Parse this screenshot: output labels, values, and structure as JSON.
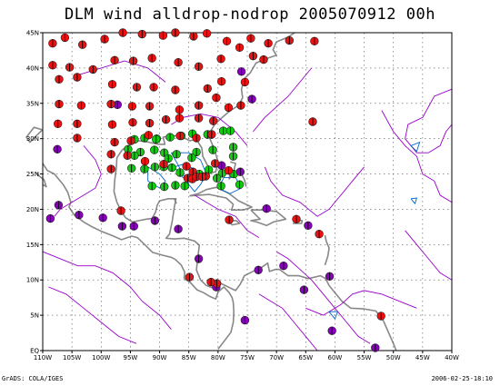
{
  "title": "DLM wind alldrop-nodrop 2005070912 00h",
  "footer_left": "GrADS: COLA/IGES",
  "footer_right": "2006-02-25-18:10",
  "colors": {
    "red_markers": "#ee1111",
    "green_markers": "#11cc11",
    "purple_markers": "#8800bb",
    "coast": "#888888",
    "contour_purple": "#9900cc",
    "contour_blue": "#0066cc",
    "grid": "#555555"
  },
  "map": {
    "lon_range": [
      -110,
      -40
    ],
    "lat_range": [
      0,
      45
    ],
    "lat_ticks": [
      {
        "v": 45,
        "label": "45N"
      },
      {
        "v": 40,
        "label": "40N"
      },
      {
        "v": 35,
        "label": "35N"
      },
      {
        "v": 30,
        "label": "30N"
      },
      {
        "v": 25,
        "label": "25N"
      },
      {
        "v": 20,
        "label": "20N"
      },
      {
        "v": 15,
        "label": "15N"
      },
      {
        "v": 10,
        "label": "10N"
      },
      {
        "v": 5,
        "label": "5N"
      },
      {
        "v": 0,
        "label": "EQ"
      }
    ],
    "lon_ticks": [
      {
        "v": -110,
        "label": "110W"
      },
      {
        "v": -105,
        "label": "105W"
      },
      {
        "v": -100,
        "label": "100W"
      },
      {
        "v": -95,
        "label": "95W"
      },
      {
        "v": -90,
        "label": "90W"
      },
      {
        "v": -85,
        "label": "85W"
      },
      {
        "v": -80,
        "label": "80W"
      },
      {
        "v": -75,
        "label": "75W"
      },
      {
        "v": -70,
        "label": "70W"
      },
      {
        "v": -65,
        "label": "65W"
      },
      {
        "v": -60,
        "label": "60W"
      },
      {
        "v": -55,
        "label": "55W"
      },
      {
        "v": -50,
        "label": "50W"
      },
      {
        "v": -45,
        "label": "45W"
      },
      {
        "v": -40,
        "label": "40W"
      }
    ]
  },
  "markers": {
    "red": [
      [
        -108.3,
        43.5
      ],
      [
        -106.2,
        44.3
      ],
      [
        -103.2,
        43.3
      ],
      [
        -99.4,
        44.1
      ],
      [
        -96.3,
        45
      ],
      [
        -93,
        44.8
      ],
      [
        -89.4,
        44.6
      ],
      [
        -87.3,
        45
      ],
      [
        -84.2,
        44.5
      ],
      [
        -81.9,
        44.9
      ],
      [
        -78.5,
        43.8
      ],
      [
        -74.4,
        44.2
      ],
      [
        -71.4,
        43.5
      ],
      [
        -67.8,
        43.9
      ],
      [
        -63.5,
        43.8
      ],
      [
        -108.3,
        40.4
      ],
      [
        -105.4,
        40.1
      ],
      [
        -101.4,
        39.8
      ],
      [
        -97.7,
        41.1
      ],
      [
        -94.5,
        41
      ],
      [
        -91.3,
        41.4
      ],
      [
        -86.8,
        40.8
      ],
      [
        -83.3,
        40.2
      ],
      [
        -79.5,
        41.3
      ],
      [
        -76.3,
        42.9
      ],
      [
        -74,
        41.7
      ],
      [
        -72.2,
        41.2
      ],
      [
        -107.2,
        38.4
      ],
      [
        -104.1,
        38.7
      ],
      [
        -98.1,
        37.7
      ],
      [
        -93.9,
        37.3
      ],
      [
        -91,
        37.3
      ],
      [
        -87.3,
        36.9
      ],
      [
        -81.8,
        37.1
      ],
      [
        -79.4,
        38.1
      ],
      [
        -75.4,
        38
      ],
      [
        -107.2,
        34.9
      ],
      [
        -103.4,
        34.7
      ],
      [
        -98.3,
        34.9
      ],
      [
        -94.7,
        34.6
      ],
      [
        -91.7,
        34.6
      ],
      [
        -86.6,
        34.1
      ],
      [
        -83.3,
        34.7
      ],
      [
        -80.3,
        35.8
      ],
      [
        -107.4,
        32.1
      ],
      [
        -104.1,
        32.1
      ],
      [
        -98.1,
        32
      ],
      [
        -94.6,
        32.3
      ],
      [
        -91.7,
        32.2
      ],
      [
        -88.9,
        32.7
      ],
      [
        -86.6,
        32.9
      ],
      [
        -83.3,
        32.9
      ],
      [
        -80.8,
        32.5
      ],
      [
        -78.2,
        34.4
      ],
      [
        -76.1,
        34.7
      ],
      [
        -63.8,
        32.4
      ],
      [
        -104.1,
        30.1
      ],
      [
        -97.7,
        29.5
      ],
      [
        -94.9,
        29.7
      ],
      [
        -91.9,
        30.5
      ],
      [
        -86.5,
        30.4
      ],
      [
        -83.7,
        30.1
      ],
      [
        -81.1,
        30.6
      ],
      [
        -98.3,
        27.8
      ],
      [
        -95.5,
        27.6
      ],
      [
        -92.5,
        26.8
      ],
      [
        -89.3,
        26.4
      ],
      [
        -85.4,
        26.1
      ],
      [
        -84.3,
        25.3
      ],
      [
        -82.1,
        24.7
      ],
      [
        -80.5,
        26.5
      ],
      [
        -78.2,
        25.5
      ],
      [
        -98.3,
        25.7
      ],
      [
        -85.2,
        24.4
      ],
      [
        -84.4,
        24.3
      ],
      [
        -83.7,
        24.6
      ],
      [
        -82.7,
        24.6
      ],
      [
        -96.6,
        19.8
      ],
      [
        -78.1,
        18.5
      ],
      [
        -66.6,
        18.6
      ],
      [
        -62.7,
        16.5
      ],
      [
        -84.9,
        10.4
      ],
      [
        -52.1,
        4.9
      ],
      [
        -80.2,
        9.5
      ],
      [
        -81.2,
        9.7
      ]
    ],
    "green": [
      [
        -94.3,
        29.9
      ],
      [
        -92.6,
        30.1
      ],
      [
        -90.5,
        30
      ],
      [
        -88.2,
        30.2
      ],
      [
        -86.3,
        30.4
      ],
      [
        -84.4,
        30.7
      ],
      [
        -81.8,
        30.6
      ],
      [
        -79.1,
        31.1
      ],
      [
        -77.9,
        31.1
      ],
      [
        -95.4,
        28.5
      ],
      [
        -93.3,
        28.1
      ],
      [
        -90.9,
        28.4
      ],
      [
        -89.2,
        28
      ],
      [
        -87.1,
        27.8
      ],
      [
        -83.7,
        28.1
      ],
      [
        -80.9,
        28.4
      ],
      [
        -77.4,
        28.8
      ],
      [
        -94.3,
        27.6
      ],
      [
        -77.4,
        27.5
      ],
      [
        -94.8,
        25.8
      ],
      [
        -92.6,
        25.7
      ],
      [
        -90.8,
        26
      ],
      [
        -89.3,
        26
      ],
      [
        -87.9,
        25.9
      ],
      [
        -86.5,
        25.2
      ],
      [
        -83.2,
        25
      ],
      [
        -81.6,
        25.6
      ],
      [
        -79.3,
        25.1
      ],
      [
        -77.3,
        25
      ],
      [
        -91.3,
        23.3
      ],
      [
        -89.2,
        23.2
      ],
      [
        -87.3,
        23.4
      ],
      [
        -85.7,
        23.3
      ],
      [
        -79.5,
        23.3
      ],
      [
        -76.3,
        23.5
      ],
      [
        -90.6,
        29.9
      ],
      [
        -88.5,
        27.2
      ],
      [
        -84.5,
        27.3
      ],
      [
        -80.2,
        24.4
      ]
    ],
    "purple": [
      [
        -107.5,
        28.5
      ],
      [
        -108.7,
        18.7
      ],
      [
        -107.3,
        20.6
      ],
      [
        -103.8,
        19.2
      ],
      [
        -99.7,
        18.8
      ],
      [
        -96.4,
        17.6
      ],
      [
        -94.4,
        17.6
      ],
      [
        -90.8,
        18.4
      ],
      [
        -86.8,
        17.2
      ],
      [
        -76.2,
        25.3
      ],
      [
        -74.2,
        35.6
      ],
      [
        -76,
        39.5
      ],
      [
        -97.2,
        34.8
      ],
      [
        -79.4,
        26.2
      ],
      [
        -83.3,
        13
      ],
      [
        -80.3,
        9
      ],
      [
        -73.1,
        11.4
      ],
      [
        -68.8,
        12
      ],
      [
        -60.9,
        10.5
      ],
      [
        -65.3,
        8.6
      ],
      [
        -75.4,
        4.3
      ],
      [
        -60.5,
        2.8
      ],
      [
        -53.1,
        0.4
      ],
      [
        -71.7,
        20.1
      ],
      [
        -64.6,
        17.7
      ]
    ]
  }
}
